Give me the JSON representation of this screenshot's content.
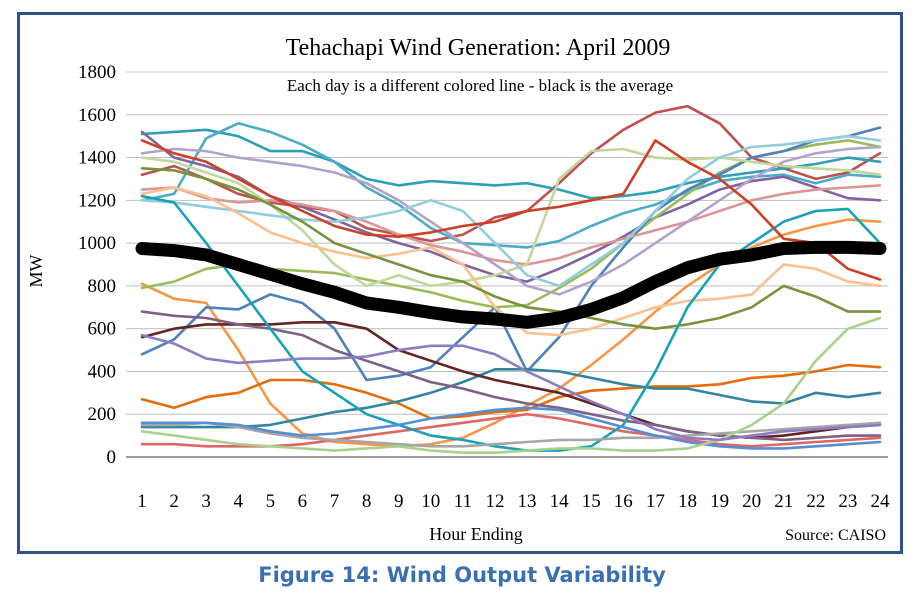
{
  "chart_data": {
    "type": "line",
    "title": "Tehachapi Wind Generation: April 2009",
    "subtitle": "Each day is a different colored line - black is the average",
    "xlabel": "Hour Ending",
    "ylabel": "MW",
    "source": "Source: CAISO",
    "x": [
      1,
      2,
      3,
      4,
      5,
      6,
      7,
      8,
      9,
      10,
      11,
      12,
      13,
      14,
      15,
      16,
      17,
      18,
      19,
      20,
      21,
      22,
      23,
      24
    ],
    "ylim": [
      0,
      1800
    ],
    "yticks": [
      0,
      200,
      400,
      600,
      800,
      1000,
      1200,
      1400,
      1600,
      1800
    ],
    "grid": "horizontal",
    "series": [
      {
        "color": "#000000",
        "role": "average",
        "values": [
          975,
          965,
          945,
          900,
          855,
          810,
          770,
          720,
          700,
          675,
          655,
          645,
          630,
          650,
          690,
          745,
          820,
          885,
          925,
          945,
          975,
          980,
          980,
          975
        ]
      },
      {
        "color": "#c0504d",
        "values": [
          1320,
          1360,
          1300,
          1230,
          1190,
          1170,
          1150,
          1070,
          1040,
          1010,
          1040,
          1120,
          1150,
          1280,
          1420,
          1530,
          1610,
          1640,
          1560,
          1400,
          1350,
          1300,
          1330,
          1420
        ]
      },
      {
        "color": "#2e9fb5",
        "values": [
          1510,
          1520,
          1530,
          1500,
          1430,
          1430,
          1380,
          1300,
          1270,
          1290,
          1280,
          1270,
          1280,
          1250,
          1210,
          1220,
          1240,
          1280,
          1310,
          1330,
          1350,
          1370,
          1400,
          1380
        ]
      },
      {
        "color": "#4bacc6",
        "values": [
          1200,
          1230,
          1490,
          1560,
          1520,
          1460,
          1380,
          1260,
          1180,
          1070,
          1000,
          990,
          980,
          1010,
          1080,
          1140,
          1180,
          1240,
          1290,
          1310,
          1320,
          1280,
          1320,
          1310
        ]
      },
      {
        "color": "#f79646",
        "values": [
          810,
          740,
          720,
          500,
          250,
          110,
          70,
          60,
          50,
          60,
          90,
          160,
          240,
          320,
          430,
          550,
          680,
          800,
          900,
          980,
          1040,
          1080,
          1110,
          1100
        ]
      },
      {
        "color": "#8064a2",
        "values": [
          1520,
          1400,
          1360,
          1310,
          1220,
          1170,
          1110,
          1050,
          1000,
          960,
          900,
          850,
          820,
          880,
          950,
          1030,
          1120,
          1180,
          1250,
          1290,
          1310,
          1260,
          1210,
          1200
        ]
      },
      {
        "color": "#9bbb59",
        "values": [
          790,
          820,
          880,
          900,
          880,
          870,
          860,
          830,
          800,
          770,
          730,
          700,
          710,
          790,
          880,
          1000,
          1120,
          1230,
          1330,
          1400,
          1430,
          1460,
          1480,
          1450
        ]
      },
      {
        "color": "#4f81bd",
        "values": [
          480,
          550,
          700,
          690,
          760,
          720,
          600,
          360,
          380,
          420,
          560,
          700,
          400,
          560,
          800,
          980,
          1150,
          1250,
          1320,
          1400,
          1430,
          1480,
          1500,
          1540
        ]
      },
      {
        "color": "#e46c0a",
        "values": [
          270,
          230,
          280,
          300,
          360,
          360,
          340,
          300,
          250,
          180,
          190,
          210,
          220,
          280,
          310,
          320,
          330,
          330,
          340,
          370,
          380,
          400,
          430,
          420
        ]
      },
      {
        "color": "#31859c",
        "values": [
          140,
          140,
          140,
          140,
          150,
          180,
          210,
          230,
          260,
          300,
          350,
          410,
          410,
          400,
          370,
          340,
          320,
          320,
          290,
          260,
          250,
          300,
          280,
          300
        ]
      },
      {
        "color": "#d99694",
        "values": [
          1250,
          1260,
          1210,
          1190,
          1200,
          1180,
          1150,
          1100,
          1040,
          990,
          960,
          920,
          900,
          930,
          980,
          1020,
          1060,
          1100,
          1150,
          1200,
          1230,
          1250,
          1260,
          1270
        ]
      },
      {
        "color": "#b3a2c7",
        "values": [
          1420,
          1440,
          1430,
          1400,
          1380,
          1360,
          1330,
          1280,
          1200,
          1100,
          1000,
          900,
          800,
          760,
          820,
          900,
          1000,
          1100,
          1200,
          1300,
          1380,
          1420,
          1440,
          1450
        ]
      },
      {
        "color": "#c3d69b",
        "values": [
          1400,
          1380,
          1330,
          1280,
          1180,
          1060,
          900,
          800,
          850,
          800,
          820,
          850,
          900,
          1300,
          1430,
          1440,
          1400,
          1390,
          1400,
          1380,
          1360,
          1350,
          1340,
          1320
        ]
      },
      {
        "color": "#93cddd",
        "values": [
          1200,
          1190,
          1170,
          1150,
          1130,
          1110,
          1100,
          1120,
          1150,
          1200,
          1150,
          1000,
          850,
          800,
          900,
          1000,
          1150,
          1300,
          1400,
          1450,
          1460,
          1480,
          1500,
          1480
        ]
      },
      {
        "color": "#fac090",
        "values": [
          1230,
          1260,
          1220,
          1140,
          1050,
          1000,
          960,
          930,
          950,
          980,
          900,
          700,
          580,
          570,
          600,
          650,
          700,
          730,
          740,
          760,
          900,
          880,
          820,
          800
        ]
      },
      {
        "color": "#632523",
        "values": [
          560,
          600,
          620,
          620,
          620,
          630,
          630,
          600,
          500,
          450,
          400,
          360,
          330,
          300,
          250,
          200,
          150,
          120,
          100,
          90,
          100,
          120,
          140,
          150
        ]
      },
      {
        "color": "#7f6084",
        "values": [
          680,
          660,
          650,
          620,
          600,
          570,
          500,
          450,
          400,
          350,
          320,
          280,
          250,
          230,
          200,
          170,
          150,
          120,
          100,
          90,
          80,
          90,
          100,
          100
        ]
      },
      {
        "color": "#77933c",
        "values": [
          1350,
          1340,
          1300,
          1250,
          1180,
          1100,
          1000,
          950,
          900,
          850,
          820,
          750,
          700,
          680,
          650,
          620,
          600,
          620,
          650,
          700,
          800,
          750,
          680,
          680
        ]
      },
      {
        "color": "#e06666",
        "values": [
          60,
          60,
          50,
          50,
          50,
          60,
          80,
          100,
          120,
          140,
          160,
          180,
          200,
          180,
          150,
          120,
          100,
          80,
          60,
          50,
          60,
          70,
          80,
          90
        ]
      },
      {
        "color": "#17a2b8",
        "values": [
          1220,
          1190,
          1000,
          800,
          600,
          400,
          300,
          200,
          150,
          100,
          80,
          50,
          30,
          30,
          50,
          150,
          400,
          700,
          900,
          1000,
          1100,
          1150,
          1160,
          1000
        ]
      },
      {
        "color": "#a6a6a6",
        "values": [
          150,
          150,
          160,
          140,
          110,
          90,
          80,
          70,
          60,
          50,
          50,
          60,
          70,
          80,
          80,
          90,
          90,
          100,
          110,
          120,
          130,
          140,
          150,
          160
        ]
      },
      {
        "color": "#558ed5",
        "values": [
          160,
          160,
          160,
          150,
          120,
          100,
          110,
          130,
          150,
          180,
          200,
          220,
          230,
          220,
          180,
          140,
          100,
          70,
          50,
          40,
          40,
          50,
          60,
          70
        ]
      },
      {
        "color": "#a9d18e",
        "values": [
          120,
          100,
          80,
          60,
          50,
          40,
          30,
          40,
          50,
          30,
          20,
          20,
          30,
          40,
          40,
          30,
          30,
          40,
          80,
          150,
          250,
          450,
          600,
          650
        ]
      },
      {
        "color": "#cc4125",
        "values": [
          1480,
          1420,
          1380,
          1300,
          1220,
          1150,
          1080,
          1040,
          1030,
          1050,
          1080,
          1100,
          1150,
          1170,
          1200,
          1230,
          1480,
          1380,
          1300,
          1180,
          1020,
          1000,
          880,
          830
        ]
      },
      {
        "color": "#8e7cc3",
        "values": [
          570,
          530,
          460,
          440,
          450,
          460,
          460,
          470,
          500,
          520,
          520,
          480,
          400,
          330,
          260,
          200,
          130,
          90,
          80,
          100,
          120,
          130,
          140,
          150
        ]
      }
    ]
  },
  "caption": "Figure 14: Wind Output Variability"
}
